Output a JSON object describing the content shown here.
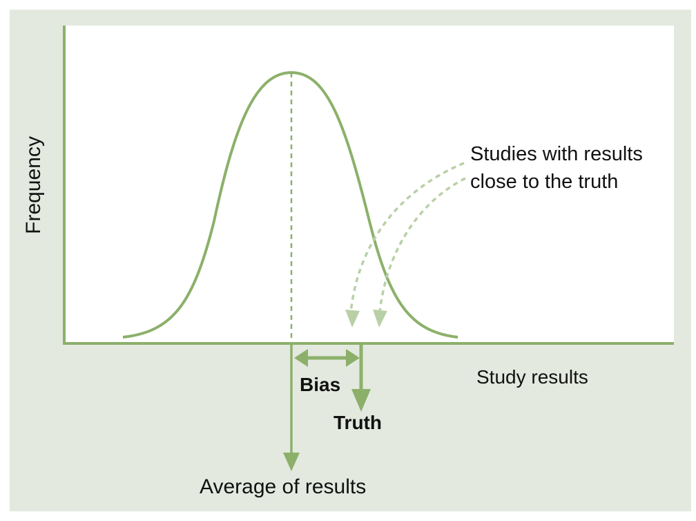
{
  "diagram": {
    "labels": {
      "y_axis": "Frequency",
      "x_axis": "Study results",
      "bias": "Bias",
      "truth": "Truth",
      "average": "Average of results",
      "callout_line1": "Studies with results",
      "callout_line2": "close to the truth"
    },
    "colors": {
      "frame_background": "#e3e9df",
      "plot_background": "#ffffff",
      "accent_green": "#8cb06a",
      "dashed_green_light": "#b9d0a7",
      "text": "#111111"
    }
  }
}
